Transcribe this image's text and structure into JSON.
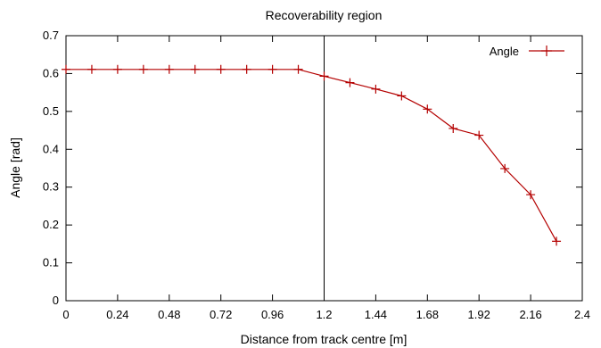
{
  "chart_data": {
    "type": "line",
    "title": "Recoverability region",
    "xlabel": "Distance from track centre [m]",
    "ylabel": "Angle [rad]",
    "xlim": [
      0,
      2.4
    ],
    "ylim": [
      0,
      0.7
    ],
    "xticks": [
      "0",
      "0.24",
      "0.48",
      "0.72",
      "0.96",
      "1.2",
      "1.44",
      "1.68",
      "1.92",
      "2.16",
      "2.4"
    ],
    "yticks": [
      "0",
      "0.1",
      "0.2",
      "0.3",
      "0.4",
      "0.5",
      "0.6",
      "0.7"
    ],
    "grid": false,
    "legend_position": "top-right",
    "vertical_line_x": 1.2,
    "series": [
      {
        "name": "Angle",
        "color": "#b40000",
        "marker": "plus",
        "x": [
          0.0,
          0.12,
          0.24,
          0.36,
          0.48,
          0.6,
          0.72,
          0.84,
          0.96,
          1.08,
          1.2,
          1.32,
          1.44,
          1.56,
          1.68,
          1.8,
          1.92,
          2.04,
          2.16,
          2.28
        ],
        "y": [
          0.611,
          0.611,
          0.611,
          0.611,
          0.611,
          0.611,
          0.611,
          0.611,
          0.611,
          0.611,
          0.593,
          0.576,
          0.559,
          0.541,
          0.506,
          0.455,
          0.437,
          0.349,
          0.28,
          0.157
        ]
      }
    ]
  }
}
